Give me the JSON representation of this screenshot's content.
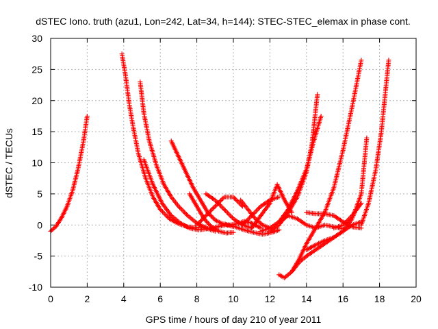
{
  "chart_data": {
    "type": "scatter",
    "title": "dSTEC Iono. truth (azu1, Lon=242, Lat=34, h=144): STEC-STEC_elemax in phase cont.",
    "xlabel": "GPS time / hours of day 210 of year 2011",
    "ylabel": "dSTEC  / TECUs",
    "xlim": [
      0,
      20
    ],
    "ylim": [
      -10,
      30
    ],
    "xticks": [
      0,
      2,
      4,
      6,
      8,
      10,
      12,
      14,
      16,
      18,
      20
    ],
    "yticks": [
      -10,
      -5,
      0,
      5,
      10,
      15,
      20,
      25,
      30
    ],
    "grid": true,
    "marker": "plus",
    "color": "#ff0000",
    "series": [
      {
        "x": [
          0.0,
          0.3,
          0.6,
          0.9,
          1.2,
          1.5,
          1.8,
          2.0
        ],
        "y": [
          -1.0,
          -0.2,
          1.2,
          3.0,
          5.5,
          9.0,
          13.5,
          17.5
        ]
      },
      {
        "x": [
          3.9,
          4.1,
          4.3,
          4.5,
          4.8,
          5.2,
          5.6,
          6.0,
          6.5,
          7.0,
          7.5,
          8.0,
          8.5
        ],
        "y": [
          27.5,
          24.0,
          19.5,
          16.0,
          11.5,
          7.5,
          4.5,
          2.5,
          1.0,
          0.2,
          -0.3,
          -0.4,
          -0.3
        ]
      },
      {
        "x": [
          4.9,
          5.1,
          5.4,
          5.8,
          6.2,
          6.6,
          7.0,
          7.5,
          8.0,
          8.5,
          9.0
        ],
        "y": [
          23.0,
          18.0,
          13.5,
          9.5,
          6.5,
          4.5,
          3.0,
          1.5,
          0.3,
          -0.5,
          -1.0
        ]
      },
      {
        "x": [
          5.1,
          5.6,
          6.1,
          6.6,
          7.1,
          7.6,
          8.1,
          8.6,
          9.1,
          9.6,
          10.1,
          10.6,
          11.1,
          11.6,
          12.1,
          12.5
        ],
        "y": [
          10.5,
          6.5,
          3.5,
          1.5,
          0.3,
          -0.5,
          -0.8,
          -0.6,
          -0.3,
          0.0,
          -0.3,
          -0.8,
          -1.2,
          -1.5,
          -1.2,
          -0.8
        ]
      },
      {
        "x": [
          6.6,
          7.0,
          7.4,
          7.8,
          8.2,
          8.6,
          9.0,
          9.4,
          9.8,
          10.2,
          10.6,
          11.0,
          11.5
        ],
        "y": [
          13.5,
          11.0,
          8.5,
          6.0,
          4.0,
          2.0,
          0.8,
          0.2,
          0.0,
          0.2,
          0.6,
          0.3,
          -0.5
        ]
      },
      {
        "x": [
          7.6,
          8.0,
          8.4,
          8.8,
          9.2,
          9.6,
          10.0
        ],
        "y": [
          5.0,
          3.0,
          1.0,
          -0.3,
          -1.0,
          -1.3,
          -1.2
        ]
      },
      {
        "x": [
          8.0,
          8.5,
          9.0,
          9.5,
          10.0,
          10.5
        ],
        "y": [
          0.0,
          1.5,
          3.0,
          4.5,
          4.5,
          3.0
        ]
      },
      {
        "x": [
          8.5,
          9.0,
          9.5,
          10.0,
          10.5,
          11.0
        ],
        "y": [
          5.0,
          4.0,
          2.5,
          1.0,
          0.0,
          -0.5
        ]
      },
      {
        "x": [
          10.4,
          10.8,
          11.2,
          11.6,
          12.0
        ],
        "y": [
          4.0,
          2.5,
          1.0,
          0.0,
          -0.5
        ]
      },
      {
        "x": [
          10.5,
          11.0,
          11.5,
          12.0,
          12.5
        ],
        "y": [
          0.0,
          1.5,
          3.0,
          4.0,
          4.5
        ]
      },
      {
        "x": [
          11.0,
          11.5,
          12.0,
          12.4,
          12.8,
          13.2
        ],
        "y": [
          -0.5,
          1.5,
          3.5,
          6.5,
          4.0,
          2.0
        ]
      },
      {
        "x": [
          11.5,
          12.0,
          12.5,
          13.0,
          13.5,
          14.0,
          14.5,
          15.0,
          15.5,
          16.0
        ],
        "y": [
          -1.0,
          -0.5,
          0.5,
          1.5,
          1.0,
          0.0,
          -0.5,
          0.0,
          -0.3,
          -0.6
        ]
      },
      {
        "x": [
          12.0,
          12.5,
          13.0,
          13.5,
          14.0,
          14.3,
          14.6
        ],
        "y": [
          -1.0,
          0.0,
          2.0,
          4.5,
          8.5,
          13.0,
          21.0
        ]
      },
      {
        "x": [
          12.5,
          13.0,
          13.5,
          14.0,
          14.4,
          14.8
        ],
        "y": [
          0.5,
          2.5,
          5.5,
          9.0,
          13.5,
          17.5
        ]
      },
      {
        "x": [
          12.5,
          12.8,
          13.2,
          13.6,
          14.0,
          14.5,
          15.0,
          15.5,
          16.0,
          16.5,
          17.0
        ],
        "y": [
          -8.0,
          -8.5,
          -7.5,
          -5.5,
          -3.0,
          -0.5,
          2.0,
          6.0,
          12.0,
          19.0,
          26.5
        ]
      },
      {
        "x": [
          13.2,
          13.6,
          14.0,
          14.5,
          15.0,
          15.5,
          16.0,
          16.5,
          17.0,
          17.3
        ],
        "y": [
          -7.5,
          -6.0,
          -5.0,
          -4.0,
          -3.0,
          -2.0,
          -1.0,
          1.0,
          5.0,
          14.0
        ]
      },
      {
        "x": [
          14.0,
          14.5,
          15.0,
          15.5,
          16.0,
          16.5,
          17.0
        ],
        "y": [
          -4.0,
          -3.2,
          -2.5,
          -2.0,
          -1.0,
          0.0,
          0.5
        ]
      },
      {
        "x": [
          14.0,
          14.5,
          15.0,
          15.5,
          16.0,
          16.5,
          17.0
        ],
        "y": [
          2.0,
          1.8,
          1.8,
          1.5,
          0.5,
          -0.3,
          -0.5
        ]
      },
      {
        "x": [
          15.5,
          16.0,
          16.5,
          17.0
        ],
        "y": [
          -0.5,
          0.0,
          1.5,
          3.5
        ]
      },
      {
        "x": [
          17.0,
          17.4,
          17.8,
          18.1,
          18.5
        ],
        "y": [
          0.0,
          3.5,
          9.0,
          15.0,
          26.5
        ]
      }
    ]
  }
}
